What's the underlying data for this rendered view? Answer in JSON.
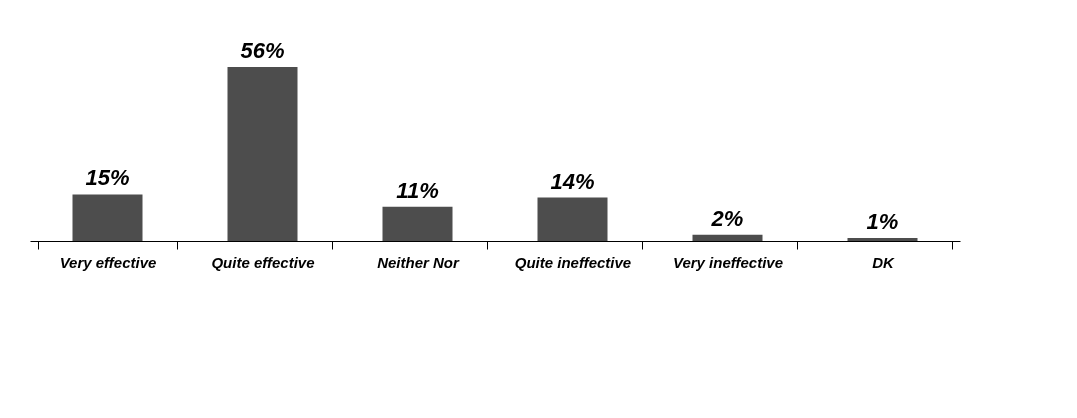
{
  "chart_data": {
    "type": "bar",
    "categories": [
      "Very effective",
      "Quite effective",
      "Neither Nor",
      "Quite ineffective",
      "Very ineffective",
      "DK"
    ],
    "values": [
      15,
      56,
      11,
      14,
      2,
      1
    ],
    "value_labels": [
      "15%",
      "56%",
      "11%",
      "14%",
      "2%",
      "1%"
    ],
    "color": "#4d4d4d"
  }
}
